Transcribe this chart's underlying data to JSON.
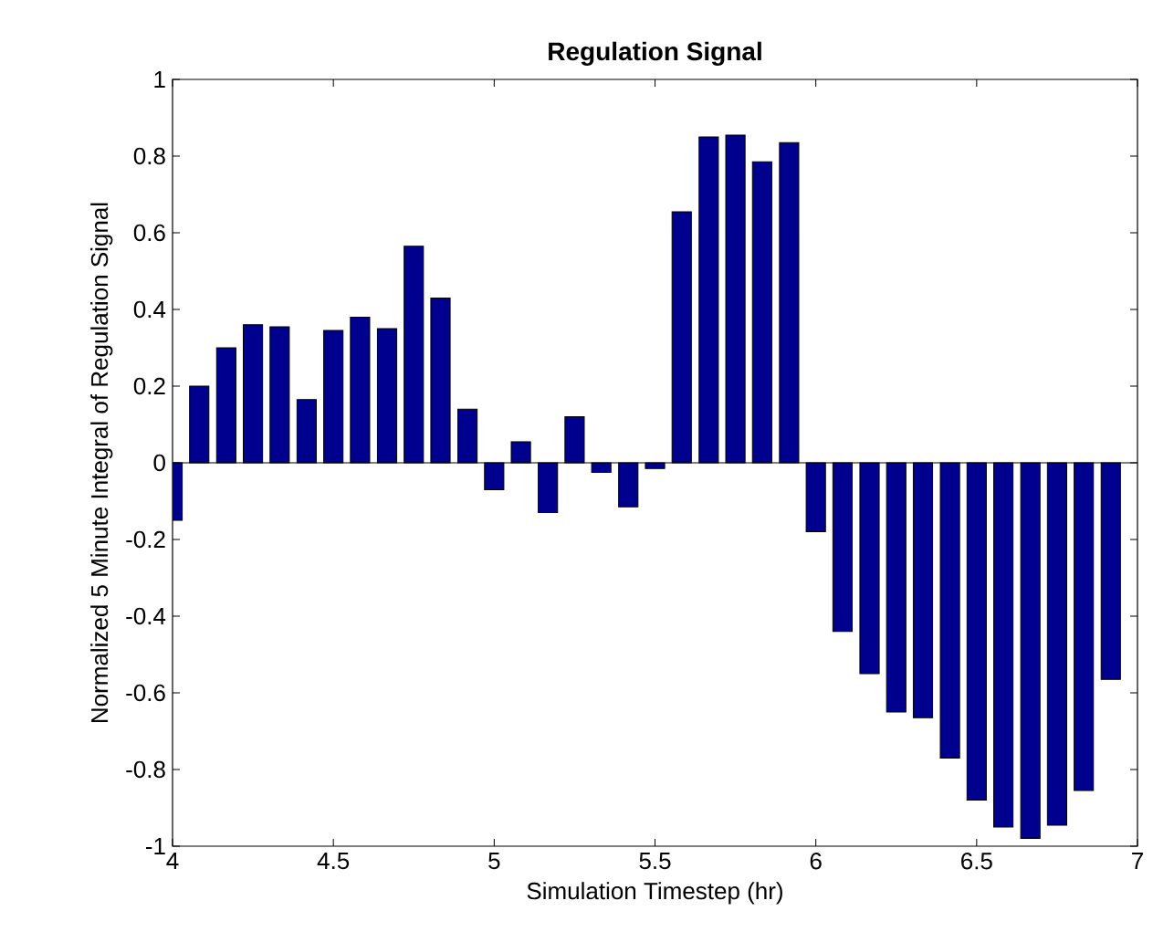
{
  "chart_data": {
    "type": "bar",
    "title": "Regulation Signal",
    "xlabel": "Simulation Timestep (hr)",
    "ylabel": "Normalized 5 Minute Integral of Regulation Signal",
    "x": [
      4,
      4.083,
      4.167,
      4.25,
      4.333,
      4.417,
      4.5,
      4.583,
      4.667,
      4.75,
      4.833,
      4.917,
      5,
      5.083,
      5.167,
      5.25,
      5.333,
      5.417,
      5.5,
      5.583,
      5.667,
      5.75,
      5.833,
      5.917,
      6,
      6.083,
      6.167,
      6.25,
      6.333,
      6.417,
      6.5,
      6.583,
      6.667,
      6.75,
      6.833,
      6.917
    ],
    "values": [
      -0.15,
      0.2,
      0.3,
      0.36,
      0.355,
      0.165,
      0.345,
      0.38,
      0.35,
      0.565,
      0.43,
      0.14,
      -0.07,
      0.055,
      -0.13,
      0.12,
      -0.025,
      -0.115,
      -0.015,
      0.655,
      0.85,
      0.855,
      0.785,
      0.835,
      -0.18,
      -0.44,
      -0.55,
      -0.65,
      -0.665,
      -0.77,
      -0.88,
      -0.95,
      -0.98,
      -0.945,
      -0.855,
      -0.565
    ],
    "color": "#00008f",
    "xlim": [
      4,
      7
    ],
    "ylim": [
      -1,
      1
    ],
    "xticks": [
      4,
      4.5,
      5,
      5.5,
      6,
      6.5,
      7
    ],
    "yticks": [
      -1,
      -0.8,
      -0.6,
      -0.4,
      -0.2,
      0,
      0.2,
      0.4,
      0.6,
      0.8,
      1
    ]
  }
}
